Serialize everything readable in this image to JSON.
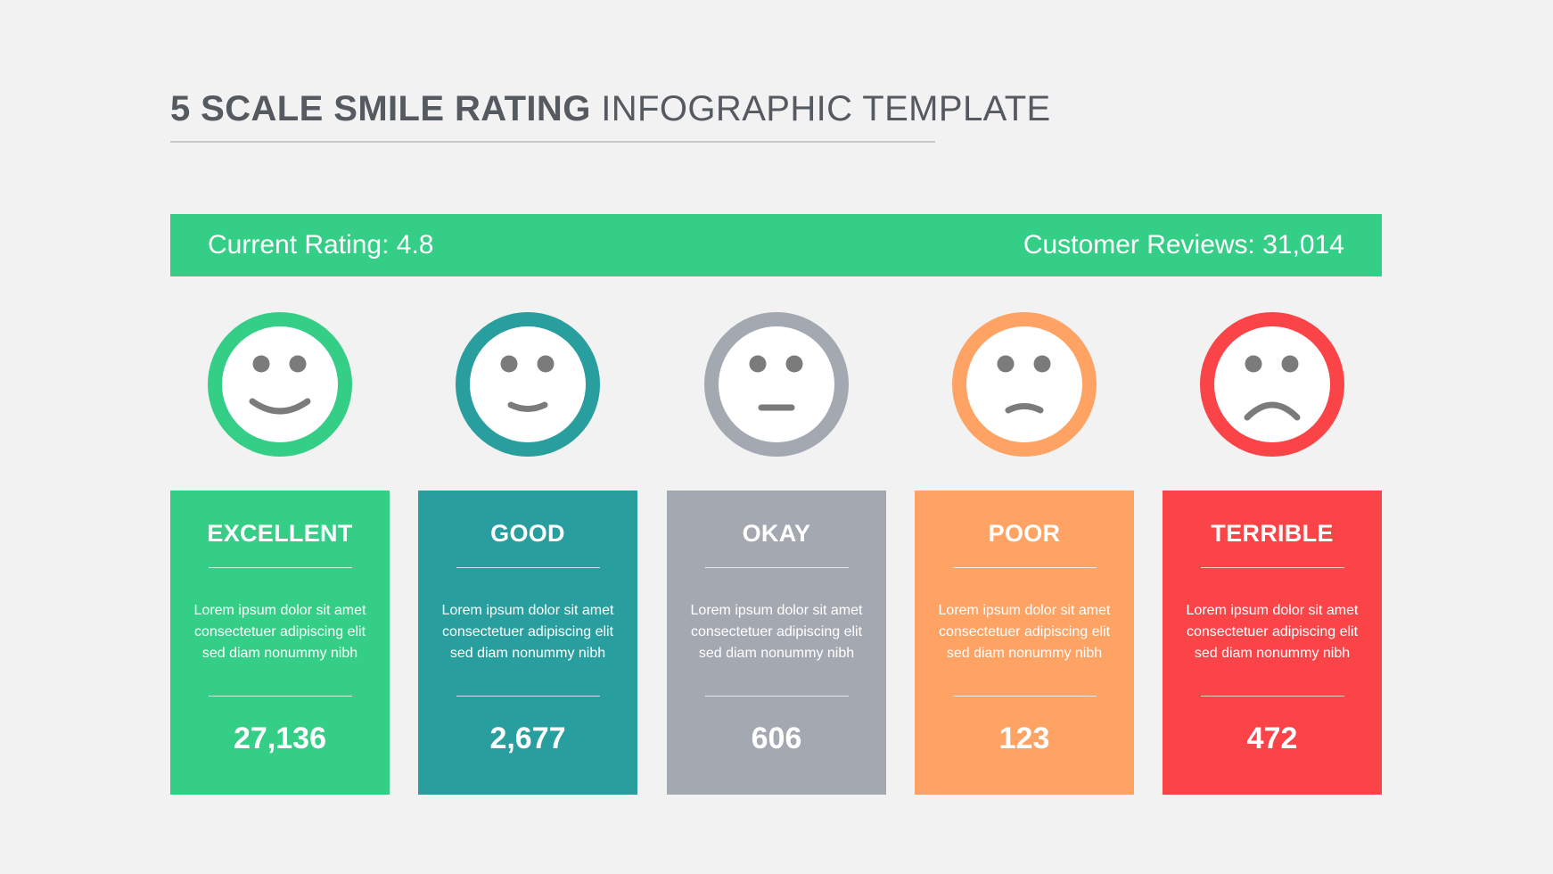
{
  "title": {
    "bold": "5 SCALE SMILE RATING",
    "regular": "INFOGRAPHIC TEMPLATE"
  },
  "banner": {
    "rating": "Current Rating: 4.8",
    "reviews": "Customer Reviews: 31,014",
    "color": "#34ce87"
  },
  "face_color": "#7b7b7b",
  "ratings": [
    {
      "label": "EXCELLENT",
      "description": "Lorem ipsum dolor sit amet consectetuer adipiscing elit sed diam nonummy nibh",
      "count": "27,136",
      "color": "#34ce87",
      "icon": "big-smile-face-icon"
    },
    {
      "label": "GOOD",
      "description": "Lorem ipsum dolor sit amet consectetuer adipiscing elit sed diam nonummy nibh",
      "count": "2,677",
      "color": "#289e9e",
      "icon": "smile-face-icon"
    },
    {
      "label": "OKAY",
      "description": "Lorem ipsum dolor sit amet consectetuer adipiscing elit sed diam nonummy nibh",
      "count": "606",
      "color": "#a3a8b1",
      "icon": "neutral-face-icon"
    },
    {
      "label": "POOR",
      "description": "Lorem ipsum dolor sit amet consectetuer adipiscing elit sed diam nonummy nibh",
      "count": "123",
      "color": "#fea364",
      "icon": "frown-face-icon"
    },
    {
      "label": "TERRIBLE",
      "description": "Lorem ipsum dolor sit amet consectetuer adipiscing elit sed diam nonummy nibh",
      "count": "472",
      "color": "#fa4447",
      "icon": "sad-face-icon"
    }
  ]
}
